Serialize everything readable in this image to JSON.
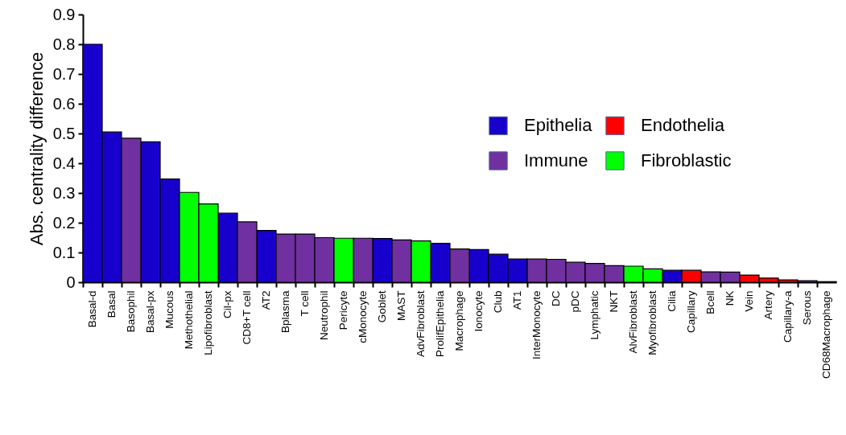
{
  "chart_data": {
    "type": "bar",
    "ylabel": "Abs. centrality difference",
    "categories": [
      "Basal-d",
      "Basal",
      "Basophil",
      "Basal-px",
      "Mucous",
      "Methothelial",
      "Lipofibroblast",
      "Cil-px",
      "CD8+T cell",
      "AT2",
      "Bplasma",
      "T cell",
      "Neutrophil",
      "Pericyte",
      "cMonocyte",
      "Goblet",
      "MAST",
      "AdvFibroblast",
      "ProlifEpithelia",
      "Macrophage",
      "Ionocyte",
      "Club",
      "AT1",
      "InterMonocyte",
      "DC",
      "pDC",
      "Lymphatic",
      "NKT",
      "AlvFibroblast",
      "Myofibroblast",
      "Cilia",
      "Capillary",
      "Bcell",
      "NK",
      "Vein",
      "Artery",
      "Capillary-a",
      "Serous",
      "CD68Macrophage"
    ],
    "series": [
      {
        "name": "Epithelia",
        "color": "#1800cc",
        "values": [
          0.8,
          0.505,
          null,
          0.472,
          0.347,
          null,
          null,
          0.232,
          null,
          0.174,
          null,
          null,
          null,
          null,
          null,
          0.147,
          null,
          null,
          0.131,
          null,
          0.11,
          0.094,
          0.078,
          null,
          null,
          null,
          null,
          null,
          null,
          null,
          0.04,
          null,
          null,
          null,
          null,
          null,
          null,
          null,
          null
        ]
      },
      {
        "name": "Immune",
        "color": "#7030a0",
        "values": [
          null,
          null,
          0.484,
          null,
          null,
          null,
          null,
          null,
          0.203,
          null,
          0.162,
          0.162,
          0.15,
          null,
          0.148,
          null,
          0.142,
          null,
          null,
          0.112,
          null,
          null,
          null,
          0.078,
          0.077,
          0.067,
          0.063,
          0.056,
          null,
          null,
          null,
          null,
          0.035,
          0.034,
          null,
          null,
          null,
          0.005,
          0.002
        ]
      },
      {
        "name": "Endothelia",
        "color": "#ff0000",
        "values": [
          null,
          null,
          null,
          null,
          null,
          null,
          null,
          null,
          null,
          null,
          null,
          null,
          null,
          null,
          null,
          null,
          null,
          null,
          null,
          null,
          null,
          null,
          null,
          null,
          null,
          null,
          null,
          null,
          null,
          null,
          null,
          0.04,
          null,
          null,
          0.024,
          0.014,
          0.008,
          null,
          null
        ]
      },
      {
        "name": "Fibroblastic",
        "color": "#00ff00",
        "values": [
          null,
          null,
          null,
          null,
          null,
          0.302,
          0.263,
          null,
          null,
          null,
          null,
          null,
          null,
          0.148,
          null,
          null,
          null,
          0.139,
          null,
          null,
          null,
          null,
          null,
          null,
          null,
          null,
          null,
          null,
          0.054,
          0.045,
          null,
          null,
          null,
          null,
          null,
          null,
          null,
          null,
          null
        ]
      }
    ],
    "ylim": [
      0,
      0.9
    ],
    "yticks": [
      0,
      0.1,
      0.2,
      0.3,
      0.4,
      0.5,
      0.6,
      0.7,
      0.8,
      0.9
    ],
    "grid": false,
    "legend": "top right"
  }
}
